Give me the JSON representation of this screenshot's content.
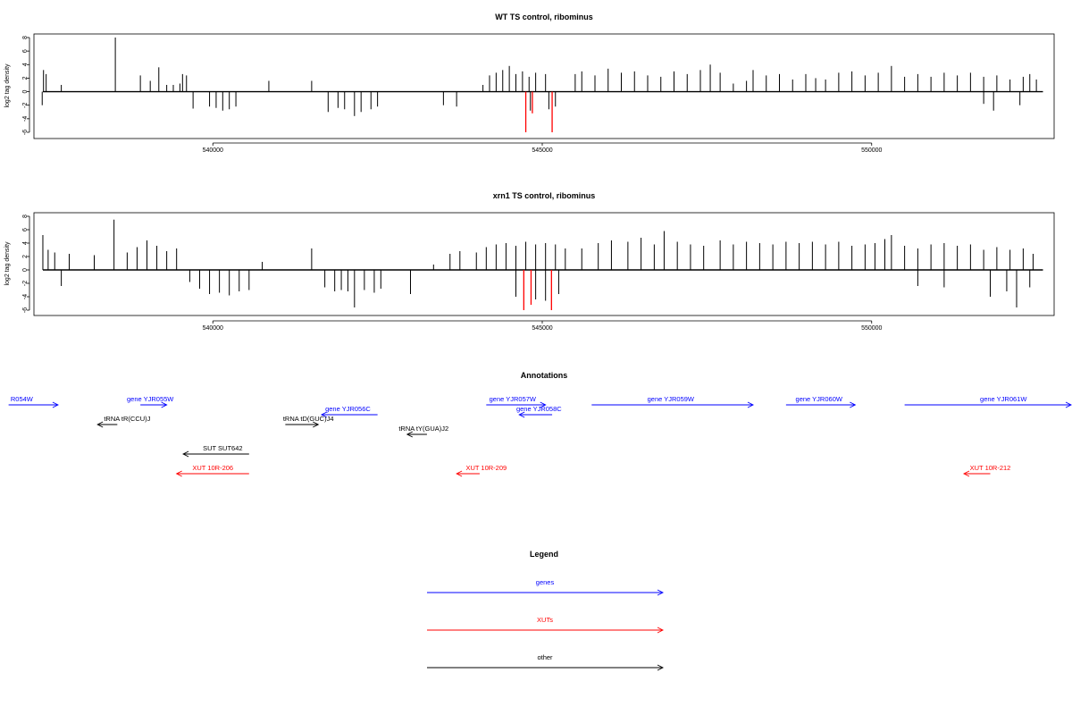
{
  "colors": {
    "gene": "#0000ff",
    "xut": "#ff0000",
    "other": "#000000",
    "highlight": "#ff0000"
  },
  "chart_data": [
    {
      "type": "bar",
      "title": "WT TS control, ribominus",
      "ylabel": "log2 tag density",
      "ylim": [
        -6,
        8
      ],
      "xlim": [
        537000,
        553000
      ],
      "x_ticks": [
        540000,
        545000,
        550000
      ],
      "x_tick_labels": [
        "540000",
        "545000",
        "550000"
      ],
      "y_ticks": [
        -6,
        -4,
        -2,
        0,
        2,
        4,
        6,
        8
      ],
      "y_tick_labels": [
        "-6",
        "-4",
        "-2",
        "0",
        "2",
        "4",
        "6",
        "8"
      ],
      "grid": false,
      "series": [
        {
          "values": [
            [
              537430,
              3.2
            ],
            [
              537470,
              2.6
            ],
            [
              537700,
              1.0
            ],
            [
              537410,
              -2.0
            ],
            [
              538520,
              8.0
            ],
            [
              538900,
              2.4
            ],
            [
              539050,
              1.6
            ],
            [
              539180,
              3.6
            ],
            [
              539300,
              1.0
            ],
            [
              539400,
              1.0
            ],
            [
              539500,
              1.2
            ],
            [
              539540,
              2.6
            ],
            [
              539600,
              2.4
            ],
            [
              539700,
              -2.5
            ],
            [
              539950,
              -2.2
            ],
            [
              540050,
              -2.4
            ],
            [
              540150,
              -2.8
            ],
            [
              540250,
              -2.6
            ],
            [
              540350,
              -2.2
            ],
            [
              540850,
              1.6
            ],
            [
              541500,
              1.6
            ],
            [
              541750,
              -3.0
            ],
            [
              541900,
              -2.4
            ],
            [
              542000,
              -2.6
            ],
            [
              542150,
              -3.6
            ],
            [
              542250,
              -3.0
            ],
            [
              542400,
              -2.6
            ],
            [
              542500,
              -2.2
            ],
            [
              543500,
              -2.0
            ],
            [
              543700,
              -2.2
            ],
            [
              544100,
              1.0
            ],
            [
              544200,
              2.4
            ],
            [
              544300,
              2.8
            ],
            [
              544400,
              3.2
            ],
            [
              544500,
              3.8
            ],
            [
              544600,
              2.6
            ],
            [
              544700,
              3.0
            ],
            [
              544800,
              2.2
            ],
            [
              544900,
              2.8
            ],
            [
              545050,
              2.6
            ],
            [
              544820,
              -2.8
            ],
            [
              545100,
              -2.6
            ],
            [
              545200,
              -2.2
            ],
            [
              545500,
              2.6
            ],
            [
              545600,
              3.0
            ],
            [
              545800,
              2.4
            ],
            [
              546000,
              3.4
            ],
            [
              546200,
              2.8
            ],
            [
              546400,
              3.0
            ],
            [
              546600,
              2.4
            ],
            [
              546800,
              2.2
            ],
            [
              547000,
              3.0
            ],
            [
              547200,
              2.6
            ],
            [
              547400,
              3.2
            ],
            [
              547550,
              4.0
            ],
            [
              547700,
              2.8
            ],
            [
              547900,
              1.2
            ],
            [
              548100,
              1.6
            ],
            [
              548200,
              3.2
            ],
            [
              548400,
              2.4
            ],
            [
              548600,
              2.6
            ],
            [
              548800,
              1.8
            ],
            [
              549000,
              2.6
            ],
            [
              549150,
              2.0
            ],
            [
              549300,
              1.8
            ],
            [
              549500,
              2.8
            ],
            [
              549700,
              3.0
            ],
            [
              549900,
              2.4
            ],
            [
              550100,
              2.8
            ],
            [
              550300,
              3.8
            ],
            [
              550500,
              2.2
            ],
            [
              550700,
              2.6
            ],
            [
              550900,
              2.2
            ],
            [
              551100,
              2.8
            ],
            [
              551300,
              2.4
            ],
            [
              551500,
              2.8
            ],
            [
              551700,
              2.2
            ],
            [
              551900,
              2.4
            ],
            [
              552100,
              1.8
            ],
            [
              552300,
              2.2
            ],
            [
              552400,
              2.6
            ],
            [
              552500,
              1.8
            ],
            [
              551700,
              -1.8
            ],
            [
              551850,
              -2.8
            ],
            [
              552250,
              -2.0
            ]
          ]
        },
        {
          "name": "highlight",
          "values": [
            [
              544750,
              -6.0
            ],
            [
              544850,
              -3.2
            ],
            [
              545150,
              -6.0
            ]
          ]
        }
      ]
    },
    {
      "type": "bar",
      "title": "xrn1 TS control, ribominus",
      "ylabel": "log2 tag density",
      "ylim": [
        -6,
        8
      ],
      "xlim": [
        537000,
        553000
      ],
      "x_ticks": [
        540000,
        545000,
        550000
      ],
      "x_tick_labels": [
        "540000",
        "545000",
        "550000"
      ],
      "y_ticks": [
        -6,
        -4,
        -2,
        0,
        2,
        4,
        6,
        8
      ],
      "y_tick_labels": [
        "-6",
        "-4",
        "-2",
        "0",
        "2",
        "4",
        "6",
        "8"
      ],
      "grid": false,
      "series": [
        {
          "values": [
            [
              537420,
              5.2
            ],
            [
              537500,
              3.0
            ],
            [
              537600,
              2.6
            ],
            [
              537700,
              -2.4
            ],
            [
              537820,
              2.4
            ],
            [
              538200,
              2.2
            ],
            [
              538500,
              7.5
            ],
            [
              538700,
              2.6
            ],
            [
              538850,
              3.4
            ],
            [
              539000,
              4.4
            ],
            [
              539150,
              3.6
            ],
            [
              539300,
              2.8
            ],
            [
              539450,
              3.2
            ],
            [
              539650,
              -1.8
            ],
            [
              539800,
              -2.8
            ],
            [
              539950,
              -3.6
            ],
            [
              540100,
              -3.4
            ],
            [
              540250,
              -3.8
            ],
            [
              540400,
              -3.2
            ],
            [
              540550,
              -3.0
            ],
            [
              540750,
              1.2
            ],
            [
              541500,
              3.2
            ],
            [
              541700,
              -2.6
            ],
            [
              541850,
              -3.2
            ],
            [
              541950,
              -3.0
            ],
            [
              542050,
              -3.2
            ],
            [
              542150,
              -5.6
            ],
            [
              542300,
              -3.0
            ],
            [
              542450,
              -3.4
            ],
            [
              542550,
              -2.8
            ],
            [
              543000,
              -3.6
            ],
            [
              543350,
              0.8
            ],
            [
              543600,
              2.4
            ],
            [
              543750,
              2.8
            ],
            [
              544000,
              2.6
            ],
            [
              544150,
              3.4
            ],
            [
              544300,
              3.8
            ],
            [
              544450,
              4.0
            ],
            [
              544600,
              3.6
            ],
            [
              544750,
              4.2
            ],
            [
              544900,
              3.8
            ],
            [
              545050,
              4.0
            ],
            [
              545200,
              3.8
            ],
            [
              545350,
              3.2
            ],
            [
              544600,
              -4.0
            ],
            [
              544900,
              -4.4
            ],
            [
              545050,
              -4.6
            ],
            [
              545250,
              -3.6
            ],
            [
              545600,
              3.2
            ],
            [
              545850,
              4.0
            ],
            [
              546050,
              4.4
            ],
            [
              546300,
              4.2
            ],
            [
              546500,
              4.8
            ],
            [
              546700,
              3.8
            ],
            [
              546850,
              5.8
            ],
            [
              547050,
              4.2
            ],
            [
              547250,
              3.8
            ],
            [
              547450,
              3.6
            ],
            [
              547700,
              4.4
            ],
            [
              547900,
              3.8
            ],
            [
              548100,
              4.2
            ],
            [
              548300,
              4.0
            ],
            [
              548500,
              3.8
            ],
            [
              548700,
              4.2
            ],
            [
              548900,
              4.0
            ],
            [
              549100,
              4.2
            ],
            [
              549300,
              3.8
            ],
            [
              549500,
              4.2
            ],
            [
              549700,
              3.6
            ],
            [
              549900,
              3.8
            ],
            [
              550050,
              4.0
            ],
            [
              550200,
              4.6
            ],
            [
              550300,
              5.2
            ],
            [
              550500,
              3.6
            ],
            [
              550700,
              3.2
            ],
            [
              550900,
              3.8
            ],
            [
              551100,
              4.0
            ],
            [
              551300,
              3.6
            ],
            [
              551500,
              3.8
            ],
            [
              551700,
              3.0
            ],
            [
              551900,
              3.4
            ],
            [
              552100,
              3.0
            ],
            [
              552300,
              3.2
            ],
            [
              552450,
              2.4
            ],
            [
              550700,
              -2.4
            ],
            [
              551100,
              -2.6
            ],
            [
              551800,
              -4.0
            ],
            [
              552050,
              -3.2
            ],
            [
              552200,
              -5.6
            ],
            [
              552400,
              -2.6
            ]
          ]
        },
        {
          "name": "highlight",
          "values": [
            [
              544720,
              -6.0
            ],
            [
              544830,
              -5.2
            ],
            [
              545140,
              -6.0
            ]
          ]
        }
      ]
    }
  ],
  "annotations": {
    "title": "Annotations",
    "xlim": [
      537000,
      553000
    ],
    "features": [
      {
        "label": "R054W",
        "start": 536900,
        "end": 537650,
        "strand": "+",
        "kind": "gene",
        "row": 0,
        "label_x": 537100
      },
      {
        "label": "gene YJR055W",
        "start": 538900,
        "end": 539300,
        "strand": "+",
        "kind": "gene",
        "row": 0,
        "label_x": 539050
      },
      {
        "label": "tRNA tR(CCU)J",
        "start": 538250,
        "end": 538550,
        "strand": "-",
        "kind": "other",
        "row": 1,
        "label_x": 538700
      },
      {
        "label": "gene YJR056C",
        "start": 541650,
        "end": 542500,
        "strand": "-",
        "kind": "gene",
        "row": 0.5,
        "label_x": 542050
      },
      {
        "label": "tRNA tD(GUC)J4",
        "start": 541100,
        "end": 541600,
        "strand": "+",
        "kind": "other",
        "row": 1,
        "label_x": 541450
      },
      {
        "label": "tRNA tY(GUA)J2",
        "start": 542950,
        "end": 543250,
        "strand": "-",
        "kind": "other",
        "row": 1.5,
        "label_x": 543200
      },
      {
        "label": "SUT SUT642",
        "start": 539550,
        "end": 540550,
        "strand": "-",
        "kind": "other",
        "row": 2.5,
        "label_x": 540150
      },
      {
        "label": "gene YJR057W",
        "start": 544150,
        "end": 545050,
        "strand": "+",
        "kind": "gene",
        "row": 0,
        "label_x": 544550
      },
      {
        "label": "gene YJR058C",
        "start": 544650,
        "end": 545150,
        "strand": "-",
        "kind": "gene",
        "row": 0.5,
        "label_x": 544950
      },
      {
        "label": "gene YJR059W",
        "start": 545750,
        "end": 548200,
        "strand": "+",
        "kind": "gene",
        "row": 0,
        "label_x": 546950
      },
      {
        "label": "gene YJR060W",
        "start": 548700,
        "end": 549750,
        "strand": "+",
        "kind": "gene",
        "row": 0,
        "label_x": 549200
      },
      {
        "label": "gene YJR061W",
        "start": 550500,
        "end": 553300,
        "strand": "+",
        "kind": "gene",
        "row": 0,
        "label_x": 552000
      },
      {
        "label": "XUT 10R-206",
        "start": 539450,
        "end": 540550,
        "strand": "-",
        "kind": "xut",
        "row": 3.5,
        "label_x": 540000
      },
      {
        "label": "XUT 10R-209",
        "start": 543700,
        "end": 544050,
        "strand": "-",
        "kind": "xut",
        "row": 3.5,
        "label_x": 544150
      },
      {
        "label": "XUT 10R-212",
        "start": 551400,
        "end": 551800,
        "strand": "-",
        "kind": "xut",
        "row": 3.5,
        "label_x": 551800
      }
    ]
  },
  "legend": {
    "title": "Legend",
    "items": [
      {
        "label": "genes",
        "kind": "gene"
      },
      {
        "label": "XUTs",
        "kind": "xut"
      },
      {
        "label": "other",
        "kind": "other"
      }
    ]
  }
}
